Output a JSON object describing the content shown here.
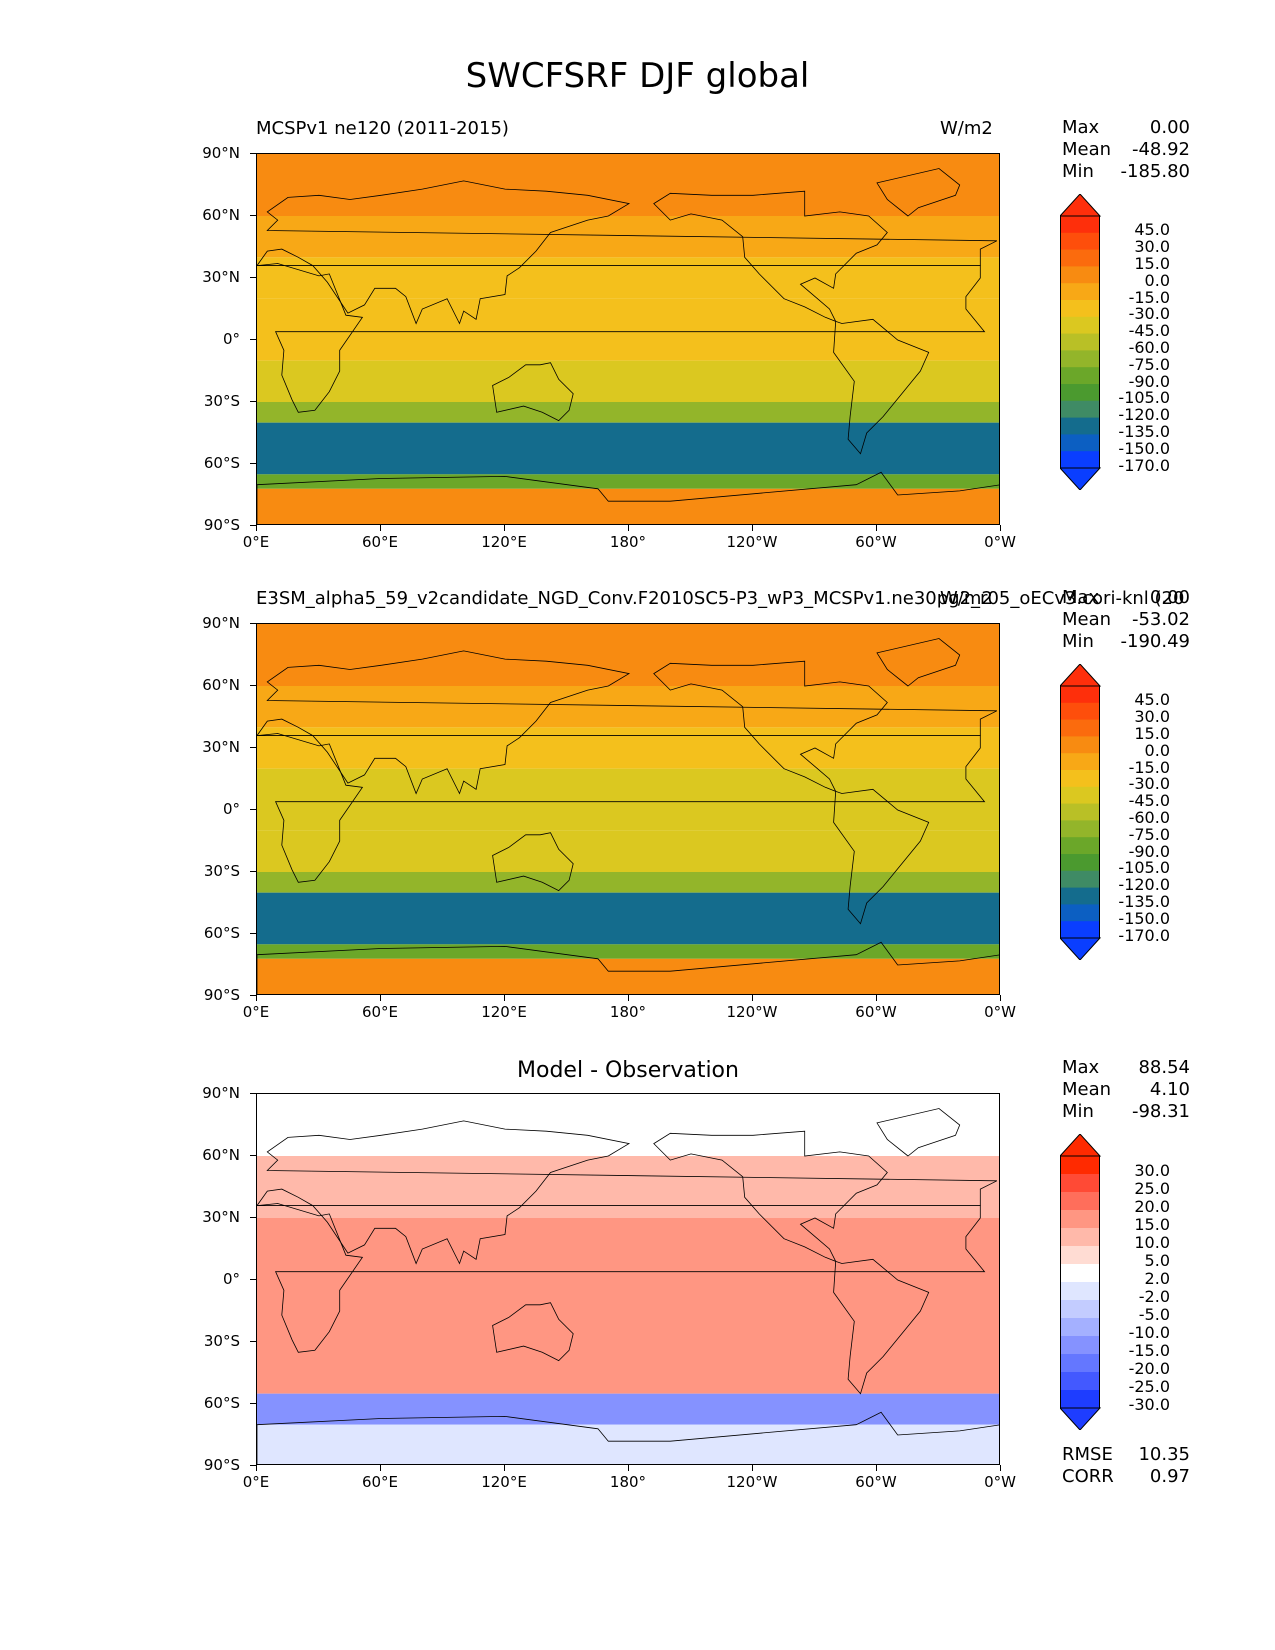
{
  "title": "SWCFSRF DJF global",
  "panels": [
    {
      "title_left": "MCSPv1 ne120 (2011-2015)",
      "title_right": "W/m2",
      "stats": {
        "max_label": "Max",
        "max": "0.00",
        "mean_label": "Mean",
        "mean": "-48.92",
        "min_label": "Min",
        "min": "-185.80"
      },
      "colorbar_levels": [
        "45.0",
        "30.0",
        "15.0",
        "0.0",
        "-15.0",
        "-30.0",
        "-45.0",
        "-60.0",
        "-75.0",
        "-90.0",
        "-105.0",
        "-120.0",
        "-135.0",
        "-150.0",
        "-170.0"
      ]
    },
    {
      "title_left": "E3SM_alpha5_59_v2candidate_NGD_Conv.F2010SC5-P3_wP3_MCSPv1.ne30pg2_r05_oECv3.cori-knl (20",
      "title_right": "W/m2",
      "stats": {
        "max_label": "Max",
        "max": "0.00",
        "mean_label": "Mean",
        "mean": "-53.02",
        "min_label": "Min",
        "min": "-190.49"
      },
      "colorbar_levels": [
        "45.0",
        "30.0",
        "15.0",
        "0.0",
        "-15.0",
        "-30.0",
        "-45.0",
        "-60.0",
        "-75.0",
        "-90.0",
        "-105.0",
        "-120.0",
        "-135.0",
        "-150.0",
        "-170.0"
      ]
    },
    {
      "title_center": "Model - Observation",
      "stats": {
        "max_label": "Max",
        "max": "88.54",
        "mean_label": "Mean",
        "mean": "4.10",
        "min_label": "Min",
        "min": "-98.31"
      },
      "colorbar_levels": [
        "30.0",
        "25.0",
        "20.0",
        "15.0",
        "10.0",
        "5.0",
        "2.0",
        "-2.0",
        "-5.0",
        "-10.0",
        "-15.0",
        "-20.0",
        "-25.0",
        "-30.0"
      ],
      "metrics": {
        "rmse_label": "RMSE",
        "rmse": "10.35",
        "corr_label": "CORR",
        "corr": "0.97"
      }
    }
  ],
  "axes": {
    "y_ticks": [
      "90°N",
      "60°N",
      "30°N",
      "0°",
      "30°S",
      "60°S",
      "90°S"
    ],
    "x_ticks": [
      "0°E",
      "60°E",
      "120°E",
      "180°",
      "120°W",
      "60°W",
      "0°W"
    ]
  },
  "colors": {
    "abs_palette": [
      "#fe2f0b",
      "#fe4e0b",
      "#fb6b0d",
      "#f88b11",
      "#f8a816",
      "#f4c01c",
      "#dbc820",
      "#b9c026",
      "#93b52a",
      "#6ba729",
      "#4b9a2f",
      "#3f8b65",
      "#146c8d",
      "#0c5fc2",
      "#0a3eff"
    ],
    "diff_palette": [
      "#ff2a00",
      "#ff4a35",
      "#ff6e5b",
      "#ff9682",
      "#ffb9aa",
      "#ffdcd3",
      "#ffffff",
      "#dfe6ff",
      "#c3ccff",
      "#a4b0ff",
      "#8592ff",
      "#6477ff",
      "#4359ff",
      "#1e3dff"
    ],
    "ocean_abs": "#f8a816"
  },
  "chart_data": [
    {
      "type": "heatmap",
      "title": "MCSPv1 ne120 (2011-2015)",
      "units": "W/m2",
      "xlabel": "",
      "ylabel": "",
      "xlim": [
        0,
        360
      ],
      "ylim": [
        -90,
        90
      ],
      "x_ticks": [
        "0°E",
        "60°E",
        "120°E",
        "180°",
        "120°W",
        "60°W",
        "0°W"
      ],
      "y_ticks": [
        "90°N",
        "60°N",
        "30°N",
        "0°",
        "30°S",
        "60°S",
        "90°S"
      ],
      "max": 0.0,
      "mean": -48.92,
      "min": -185.8,
      "levels": [
        45,
        30,
        15,
        0,
        -15,
        -30,
        -45,
        -60,
        -75,
        -90,
        -105,
        -120,
        -135,
        -150,
        -170
      ],
      "zonal_bands": [
        {
          "lat": [
            60,
            90
          ],
          "value": -10
        },
        {
          "lat": [
            40,
            60
          ],
          "value": -20
        },
        {
          "lat": [
            20,
            40
          ],
          "value": -40
        },
        {
          "lat": [
            -10,
            20
          ],
          "value": -45
        },
        {
          "lat": [
            -30,
            -10
          ],
          "value": -50
        },
        {
          "lat": [
            -40,
            -30
          ],
          "value": -80
        },
        {
          "lat": [
            -65,
            -40
          ],
          "value": -140
        },
        {
          "lat": [
            -72,
            -65
          ],
          "value": -100
        },
        {
          "lat": [
            -90,
            -72
          ],
          "value": -10
        }
      ]
    },
    {
      "type": "heatmap",
      "title": "E3SM_alpha5_59_v2candidate_NGD_Conv.F2010SC5-P3_wP3_MCSPv1.ne30pg2_r05_oECv3.cori-knl (20",
      "units": "W/m2",
      "xlim": [
        0,
        360
      ],
      "ylim": [
        -90,
        90
      ],
      "max": 0.0,
      "mean": -53.02,
      "min": -190.49,
      "levels": [
        45,
        30,
        15,
        0,
        -15,
        -30,
        -45,
        -60,
        -75,
        -90,
        -105,
        -120,
        -135,
        -150,
        -170
      ],
      "zonal_bands": [
        {
          "lat": [
            60,
            90
          ],
          "value": -10
        },
        {
          "lat": [
            40,
            60
          ],
          "value": -25
        },
        {
          "lat": [
            20,
            40
          ],
          "value": -45
        },
        {
          "lat": [
            -10,
            20
          ],
          "value": -50
        },
        {
          "lat": [
            -30,
            -10
          ],
          "value": -55
        },
        {
          "lat": [
            -40,
            -30
          ],
          "value": -90
        },
        {
          "lat": [
            -65,
            -40
          ],
          "value": -150
        },
        {
          "lat": [
            -72,
            -65
          ],
          "value": -105
        },
        {
          "lat": [
            -90,
            -72
          ],
          "value": -10
        }
      ]
    },
    {
      "type": "heatmap",
      "title": "Model - Observation",
      "xlim": [
        0,
        360
      ],
      "ylim": [
        -90,
        90
      ],
      "max": 88.54,
      "mean": 4.1,
      "min": -98.31,
      "rmse": 10.35,
      "corr": 0.97,
      "levels": [
        30,
        25,
        20,
        15,
        10,
        5,
        2,
        -2,
        -5,
        -10,
        -15,
        -20,
        -25,
        -30
      ],
      "zonal_bands": [
        {
          "lat": [
            60,
            90
          ],
          "value": 0
        },
        {
          "lat": [
            30,
            60
          ],
          "value": 8
        },
        {
          "lat": [
            0,
            30
          ],
          "value": 10
        },
        {
          "lat": [
            -30,
            0
          ],
          "value": 12
        },
        {
          "lat": [
            -55,
            -30
          ],
          "value": 14
        },
        {
          "lat": [
            -70,
            -55
          ],
          "value": -18
        },
        {
          "lat": [
            -90,
            -70
          ],
          "value": -4
        }
      ]
    }
  ]
}
